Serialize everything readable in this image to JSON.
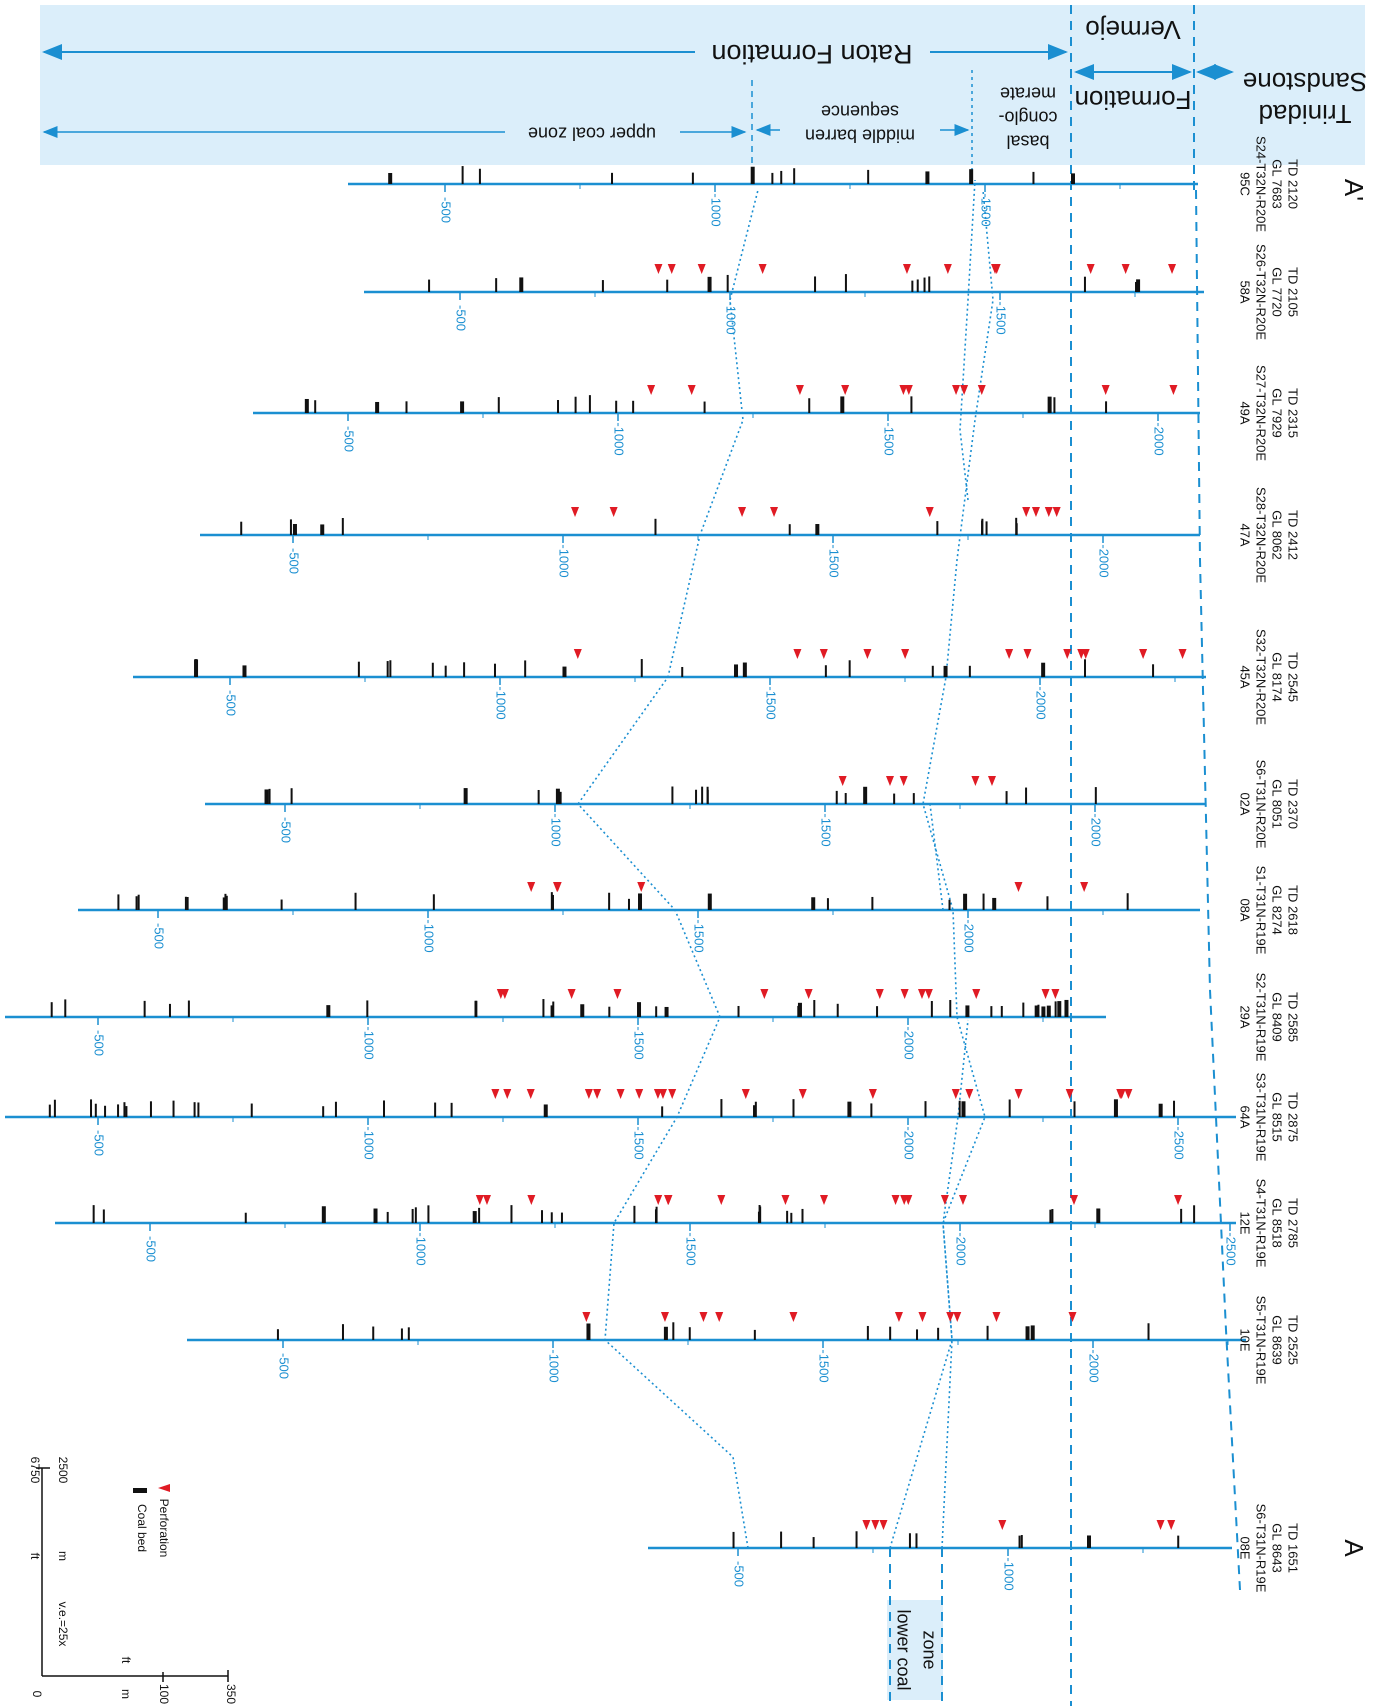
{
  "colors": {
    "accent": "#1b8fd1",
    "band": "#dbeefa",
    "coal": "#111111",
    "perforation": "#e01b24"
  },
  "header": {
    "formation_raton": "Raton Formation",
    "formation_vermejo_1": "Vermejo",
    "formation_vermejo_2": "Formation",
    "formation_trinidad_1": "Trinidad",
    "formation_trinidad_2": "Sandstone",
    "zone_upper": "upper coal zone",
    "zone_middle_1": "middle barren",
    "zone_middle_2": "sequence",
    "zone_basal_1": "basal",
    "zone_basal_2": "conglo-",
    "zone_basal_3": "merate",
    "zone_lower_1": "lower coal",
    "zone_lower_2": "zone"
  },
  "section": {
    "start_label": "A",
    "end_label": "A'"
  },
  "legend": {
    "ft_label": "ft",
    "m_label": "m",
    "ft_value_top": "6750",
    "m_value_top": "2500",
    "ve_label": "v.e.=25x",
    "coal_label": "Coal bed",
    "perf_label": "Perforation",
    "scale_zero": "0",
    "scale_ft": "350",
    "scale_m": "100",
    "scale_ft_unit": "ft",
    "scale_m_unit": "m"
  },
  "wells": [
    {
      "name": "08E",
      "loc": "S6-T31N-R19E",
      "gl": "GL 8643",
      "td": "TD 1651",
      "ticks": [
        "-500",
        "-1000"
      ],
      "perfs": 6,
      "coals": 10
    },
    {
      "name": "10E",
      "loc": "S5-T31N-R19E",
      "gl": "GL 8639",
      "td": "TD 2525",
      "ticks": [
        "-500",
        "-1000",
        "-1500",
        "-2000"
      ],
      "perfs": 11,
      "coals": 18
    },
    {
      "name": "12E",
      "loc": "S4-T31N-R19E",
      "gl": "GL 8518",
      "td": "TD 2785",
      "ticks": [
        "-500",
        "-1000",
        "-1500",
        "-2000",
        "-2500"
      ],
      "perfs": 16,
      "coals": 30
    },
    {
      "name": "64A",
      "loc": "S3-T31N-R19E",
      "gl": "GL 8515",
      "td": "TD 2875",
      "ticks": [
        "-500",
        "-1000",
        "-1500",
        "-2000",
        "-2500"
      ],
      "perfs": 20,
      "coals": 34
    },
    {
      "name": "29A",
      "loc": "S2-T31N-R19E",
      "gl": "GL 8409",
      "td": "TD 2585",
      "ticks": [
        "-500",
        "-1000",
        "-1500",
        "-2000"
      ],
      "perfs": 13,
      "coals": 36
    },
    {
      "name": "08A",
      "loc": "S1-T31N-R19E",
      "gl": "GL 8274",
      "td": "TD 2618",
      "ticks": [
        "-500",
        "-1000",
        "-1500",
        "-2000"
      ],
      "perfs": 6,
      "coals": 26
    },
    {
      "name": "02A",
      "loc": "S6-T31N-R20E",
      "gl": "GL 8051",
      "td": "TD 2370",
      "ticks": [
        "-500",
        "-1000",
        "-1500",
        "-2000"
      ],
      "perfs": 5,
      "coals": 20
    },
    {
      "name": "45A",
      "loc": "S32-T32N-R20E",
      "gl": "GL 8174",
      "td": "TD 2545",
      "ticks": [
        "-500",
        "-1000",
        "-1500",
        "-2000"
      ],
      "perfs": 12,
      "coals": 24
    },
    {
      "name": "47A",
      "loc": "S28-T32N-R20E",
      "gl": "GL 8062",
      "td": "TD 2412",
      "ticks": [
        "-500",
        "-1000",
        "-1500",
        "-2000"
      ],
      "perfs": 9,
      "coals": 14
    },
    {
      "name": "49A",
      "loc": "S27-T32N-R20E",
      "gl": "GL 7929",
      "td": "TD 2315",
      "ticks": [
        "-500",
        "-1000",
        "-1500",
        "-2000"
      ],
      "perfs": 11,
      "coals": 18
    },
    {
      "name": "58A",
      "loc": "S26-T32N-R20E",
      "gl": "GL 7720",
      "td": "TD 2105",
      "ticks": [
        "-500",
        "-1000",
        "-1500"
      ],
      "perfs": 11,
      "coals": 16
    },
    {
      "name": "95C",
      "loc": "S24-T32N-R20E",
      "gl": "GL 7683",
      "td": "TD 2120",
      "ticks": [
        "-500",
        "-1000",
        "-1500"
      ],
      "perfs": 0,
      "coals": 14
    }
  ]
}
